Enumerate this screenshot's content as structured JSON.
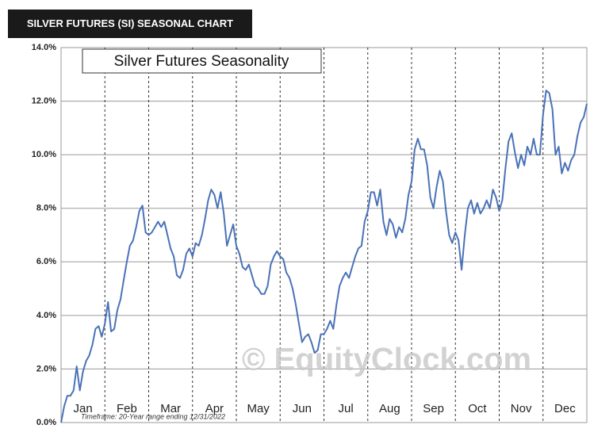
{
  "header": "SILVER FUTURES (SI) SEASONAL CHART",
  "chart_data": {
    "type": "line",
    "title": "Silver Futures Seasonality",
    "note": "Timeframe: 20-Year range ending 12/31/2022",
    "watermark": "© EquityClock.com",
    "x_labels": [
      "Jan",
      "Feb",
      "Mar",
      "Apr",
      "May",
      "Jun",
      "Jul",
      "Aug",
      "Sep",
      "Oct",
      "Nov",
      "Dec"
    ],
    "ylim": [
      0,
      14
    ],
    "yticks": [
      {
        "value": 0,
        "label": "0.0%"
      },
      {
        "value": 2,
        "label": "2.0%"
      },
      {
        "value": 4,
        "label": "4.0%"
      },
      {
        "value": 6,
        "label": "6.0%"
      },
      {
        "value": 8,
        "label": "8.0%"
      },
      {
        "value": 10,
        "label": "10.0%"
      },
      {
        "value": 12,
        "label": "12.0%"
      },
      {
        "value": 14,
        "label": "14.0%"
      }
    ],
    "grid": true,
    "color": "#4a72b8",
    "values": [
      0.0,
      0.6,
      1.0,
      1.0,
      1.2,
      2.1,
      1.2,
      1.9,
      2.3,
      2.5,
      2.9,
      3.5,
      3.6,
      3.2,
      3.7,
      4.5,
      3.4,
      3.5,
      4.2,
      4.6,
      5.3,
      6.0,
      6.6,
      6.8,
      7.3,
      7.9,
      8.1,
      7.1,
      7.0,
      7.1,
      7.3,
      7.5,
      7.3,
      7.5,
      7.0,
      6.5,
      6.2,
      5.5,
      5.4,
      5.7,
      6.3,
      6.5,
      6.2,
      6.7,
      6.6,
      7.0,
      7.6,
      8.3,
      8.7,
      8.5,
      8.0,
      8.6,
      7.8,
      6.6,
      7.0,
      7.4,
      6.6,
      6.3,
      5.8,
      5.7,
      5.9,
      5.5,
      5.1,
      5.0,
      4.8,
      4.8,
      5.1,
      5.9,
      6.2,
      6.4,
      6.2,
      6.1,
      5.6,
      5.4,
      5.0,
      4.4,
      3.7,
      3.0,
      3.2,
      3.3,
      3.0,
      2.6,
      2.7,
      3.3,
      3.3,
      3.5,
      3.8,
      3.5,
      4.4,
      5.1,
      5.4,
      5.6,
      5.4,
      5.8,
      6.2,
      6.5,
      6.6,
      7.5,
      7.9,
      8.6,
      8.6,
      8.1,
      8.7,
      7.5,
      7.0,
      7.6,
      7.4,
      6.9,
      7.3,
      7.1,
      7.6,
      8.5,
      9.0,
      10.2,
      10.6,
      10.2,
      10.2,
      9.6,
      8.4,
      8.0,
      8.8,
      9.4,
      9.0,
      7.9,
      7.0,
      6.7,
      7.1,
      6.8,
      5.7,
      7.0,
      8.0,
      8.3,
      7.8,
      8.2,
      7.8,
      8.0,
      8.3,
      8.0,
      8.7,
      8.4,
      7.9,
      8.3,
      9.5,
      10.5,
      10.8,
      10.1,
      9.5,
      10.0,
      9.6,
      10.3,
      10.0,
      10.6,
      10.0,
      10.0,
      11.5,
      12.4,
      12.3,
      11.7,
      10.0,
      10.3,
      9.3,
      9.7,
      9.4,
      9.8,
      10.0,
      10.7,
      11.2,
      11.4,
      11.9
    ]
  }
}
